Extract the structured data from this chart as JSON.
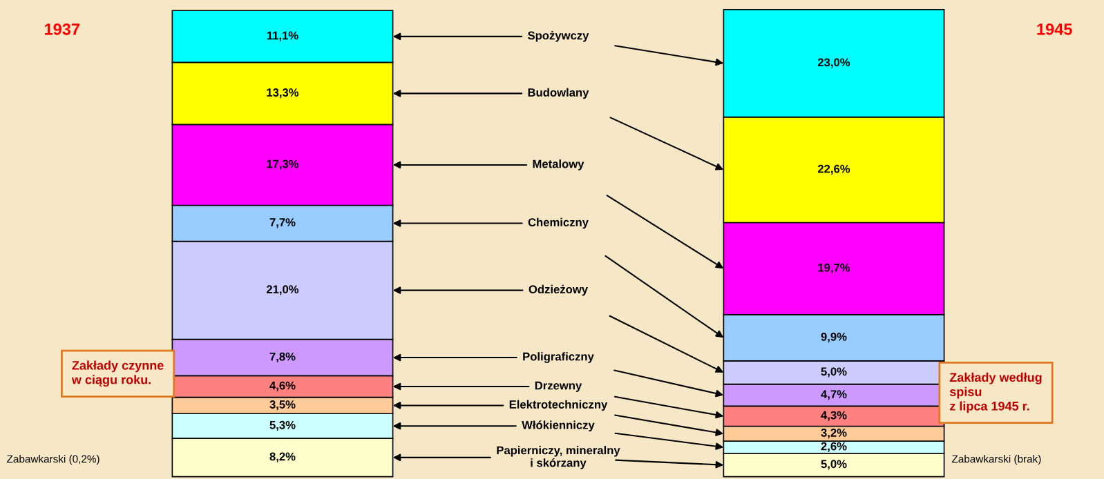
{
  "chart_data": {
    "type": "bar",
    "stacked": true,
    "categories": [
      "1937",
      "1945"
    ],
    "series": [
      {
        "name": "Papierniczy, mineralny\ni skórzany",
        "color": "#ffffcc",
        "values": [
          8.2,
          5.0
        ],
        "value_labels": [
          "8,2%",
          "5,0%"
        ]
      },
      {
        "name": "Włókienniczy",
        "color": "#ccffff",
        "values": [
          5.3,
          2.6
        ],
        "value_labels": [
          "5,3%",
          "2,6%"
        ]
      },
      {
        "name": "Elektrotechniczny",
        "color": "#ffcc99",
        "values": [
          3.5,
          3.2
        ],
        "value_labels": [
          "3,5%",
          "3,2%"
        ]
      },
      {
        "name": "Drzewny",
        "color": "#ff8080",
        "values": [
          4.6,
          4.3
        ],
        "value_labels": [
          "4,6%",
          "4,3%"
        ]
      },
      {
        "name": "Poligraficzny",
        "color": "#cc99ff",
        "values": [
          7.8,
          4.7
        ],
        "value_labels": [
          "7,8%",
          "4,7%"
        ]
      },
      {
        "name": "Odzieżowy",
        "color": "#ccccff",
        "values": [
          21.0,
          5.0
        ],
        "value_labels": [
          "21,0%",
          "5,0%"
        ]
      },
      {
        "name": "Chemiczny",
        "color": "#99ccff",
        "values": [
          7.7,
          9.9
        ],
        "value_labels": [
          "7,7%",
          "9,9%"
        ]
      },
      {
        "name": "Metalowy",
        "color": "#ff00ff",
        "values": [
          17.3,
          19.7
        ],
        "value_labels": [
          "17,3%",
          "19,7%"
        ]
      },
      {
        "name": "Budowlany",
        "color": "#ffff00",
        "values": [
          13.3,
          22.6
        ],
        "value_labels": [
          "13,3%",
          "22,6%"
        ]
      },
      {
        "name": "Spożywczy",
        "color": "#00ffff",
        "values": [
          11.1,
          23.0
        ],
        "value_labels": [
          "11,1%",
          "23,0%"
        ]
      }
    ],
    "annotations": [
      "Zakłady czynne\nw ciągu roku.",
      "Zakłady według\nspisu\nz lipca 1945 r.",
      "Zabawkarski (0,2%)",
      "Zabawkarski (brak)"
    ]
  }
}
